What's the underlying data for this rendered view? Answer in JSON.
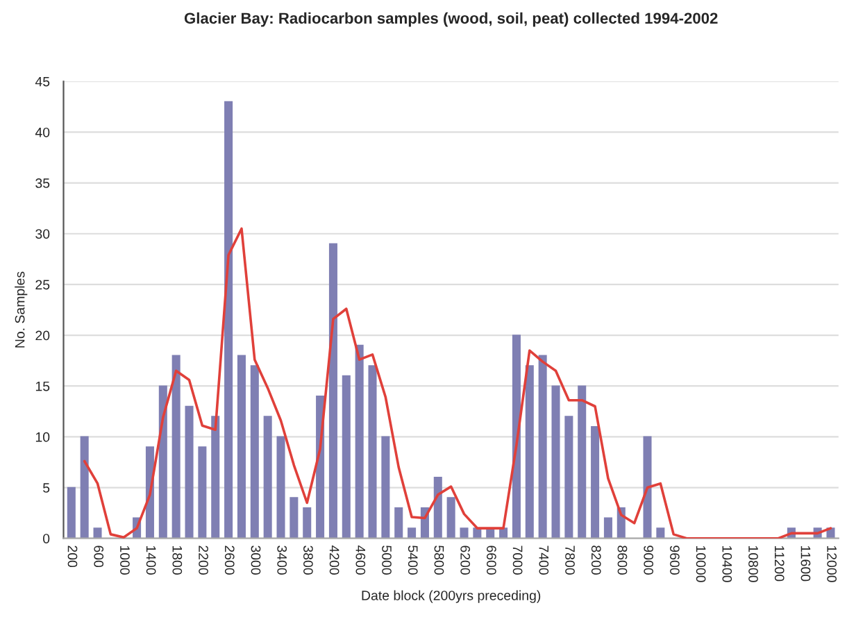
{
  "chart_data": {
    "type": "bar",
    "title": "Glacier Bay: Radiocarbon samples (wood, soil, peat) collected 1994-2002",
    "xlabel": "Date block (200yrs preceding)",
    "ylabel": "No. Samples",
    "categories": [
      "200",
      null,
      "600",
      null,
      "1000",
      null,
      "1400",
      null,
      "1800",
      null,
      "2200",
      null,
      "2600",
      null,
      "3000",
      null,
      "3400",
      null,
      "3800",
      null,
      "4200",
      null,
      "4600",
      null,
      "5000",
      null,
      "5400",
      null,
      "5800",
      null,
      "6200",
      null,
      "6600",
      null,
      "7000",
      null,
      "7400",
      null,
      "7800",
      null,
      "8200",
      null,
      "8600",
      null,
      "9000",
      null,
      "9600",
      null,
      "10000",
      null,
      "10400",
      null,
      "10800",
      null,
      "11200",
      null,
      "11600",
      null,
      "12000"
    ],
    "series": [
      {
        "color": "#7f7fb3",
        "values": [
          5,
          10,
          1,
          0,
          0,
          2,
          9,
          15,
          18,
          13,
          9,
          12,
          43,
          18,
          17,
          12,
          10,
          4,
          3,
          14,
          29,
          16,
          19,
          17,
          10,
          3,
          1,
          3,
          6,
          4,
          1,
          1,
          1,
          1,
          20,
          17,
          18,
          15,
          12,
          15,
          11,
          2,
          3,
          0,
          10,
          1,
          0,
          0,
          0,
          0,
          0,
          0,
          0,
          0,
          0,
          1,
          0,
          1,
          1
        ]
      },
      {
        "type": "line",
        "color": "#e0403a",
        "values": [
          null,
          7.6,
          5.4,
          0.4,
          0.1,
          1,
          4.3,
          11.9,
          16.5,
          15.6,
          11.1,
          10.7,
          27.9,
          30.5,
          17.6,
          14.8,
          11.6,
          7.2,
          3.5,
          8.8,
          21.6,
          22.6,
          17.6,
          18.1,
          13.9,
          7,
          2.1,
          2,
          4.3,
          5.1,
          2.4,
          1,
          1,
          1,
          9.2,
          18.5,
          17.4,
          16.5,
          13.6,
          13.6,
          13,
          5.9,
          2.3,
          1.5,
          5,
          5.4,
          0.4,
          0,
          0,
          0,
          0,
          0,
          0,
          0,
          0,
          0.5,
          0.5,
          0.5,
          1
        ]
      }
    ],
    "ylim": [
      0,
      45
    ],
    "yticks": [
      0,
      5,
      10,
      15,
      20,
      25,
      30,
      35,
      40,
      45
    ],
    "grid": "y"
  }
}
